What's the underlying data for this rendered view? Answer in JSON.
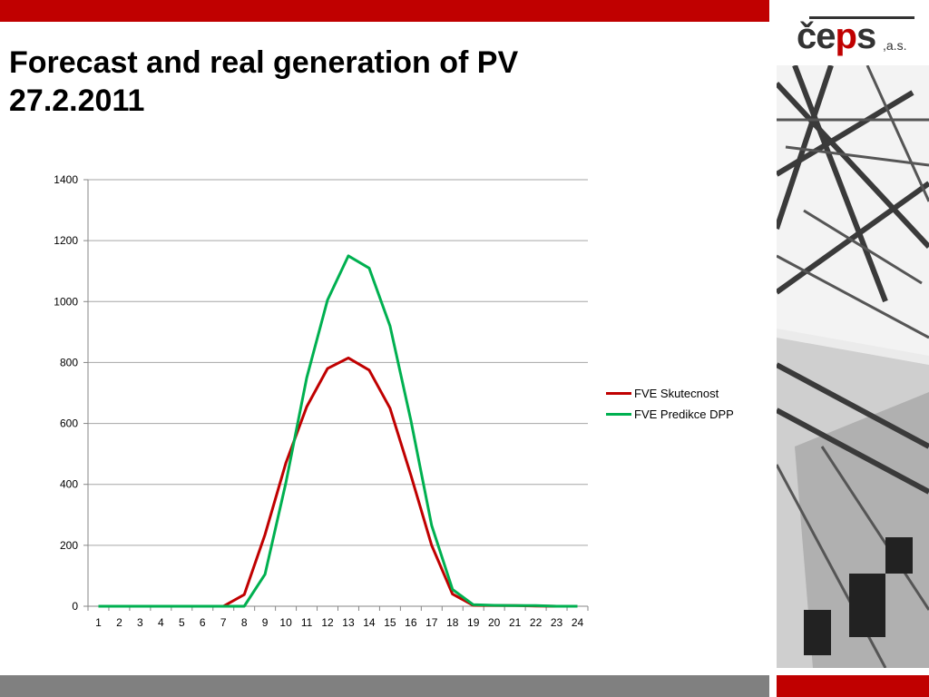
{
  "title": {
    "line1": "Forecast and real generation of PV",
    "line2": "27.2.2011"
  },
  "logo": {
    "text_dark": "če",
    "text_red": "p",
    "text_dark2": "s",
    "suffix": ",a.s."
  },
  "colors": {
    "brand_red": "#c00000",
    "footer_gray": "#808080",
    "series_real": "#c00000",
    "series_forecast": "#00b050",
    "grid": "#a6a6a6"
  },
  "chart_data": {
    "type": "line",
    "categories": [
      "1",
      "2",
      "3",
      "4",
      "5",
      "6",
      "7",
      "8",
      "9",
      "10",
      "11",
      "12",
      "13",
      "14",
      "15",
      "16",
      "17",
      "18",
      "19",
      "20",
      "21",
      "22",
      "23",
      "24"
    ],
    "yticks": [
      "0",
      "200",
      "400",
      "600",
      "800",
      "1000",
      "1200",
      "1400"
    ],
    "ylim": [
      0,
      1400
    ],
    "grid": true,
    "legend_position": "right",
    "series": [
      {
        "name": "FVE Skutecnost",
        "color": "#c00000",
        "values": [
          0,
          0,
          0,
          0,
          0,
          0,
          0,
          38,
          235,
          470,
          655,
          780,
          815,
          775,
          650,
          430,
          200,
          40,
          3,
          2,
          2,
          1,
          0,
          0
        ]
      },
      {
        "name": "FVE Predikce DPP",
        "color": "#00b050",
        "values": [
          0,
          0,
          0,
          0,
          0,
          0,
          0,
          0,
          105,
          405,
          750,
          1005,
          1150,
          1110,
          920,
          610,
          265,
          55,
          5,
          3,
          2,
          2,
          0,
          0
        ]
      }
    ]
  }
}
